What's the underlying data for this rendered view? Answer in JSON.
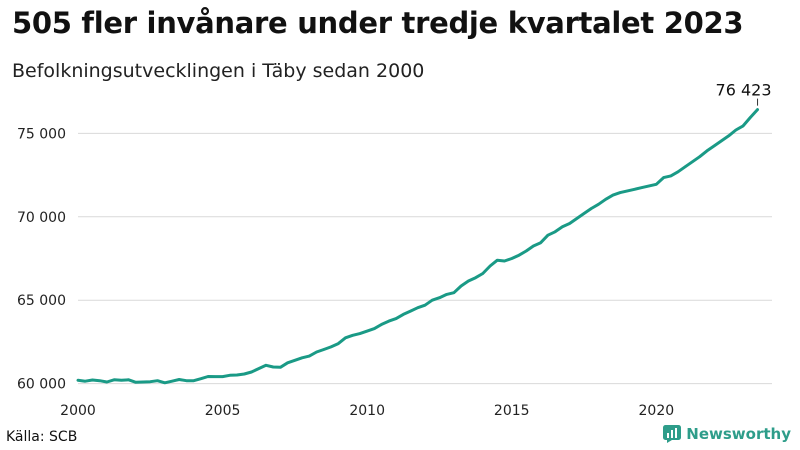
{
  "colors": {
    "line": "#1a9a86",
    "grid": "#d9d9d9",
    "brand": "#2e9d8a"
  },
  "source": "Källa: SCB",
  "brand": {
    "name": "Newsworthy",
    "icon": "newsworthy-logo-icon"
  },
  "chart_data": {
    "type": "line",
    "title": "505 fler invånare under tredje kvartalet 2023",
    "subtitle": "Befolkningsutvecklingen i Täby sedan 2000",
    "xlabel": "",
    "ylabel": "",
    "xlim": [
      2000,
      2024
    ],
    "ylim": [
      59500,
      77300
    ],
    "xticks": [
      2000,
      2005,
      2010,
      2015,
      2020
    ],
    "xtick_labels": [
      "2000",
      "2005",
      "2010",
      "2015",
      "2020"
    ],
    "yticks": [
      60000,
      65000,
      70000,
      75000
    ],
    "ytick_labels": [
      "60 000",
      "65 000",
      "70 000",
      "75 000"
    ],
    "grid": "horizontal",
    "last_value_label": "76 423",
    "series": [
      {
        "x": [
          2000.0,
          2000.25,
          2000.5,
          2000.75,
          2001.0,
          2001.25,
          2001.5,
          2001.75,
          2002.0,
          2002.25,
          2002.5,
          2002.75,
          2003.0,
          2003.25,
          2003.5,
          2003.75,
          2004.0,
          2004.25,
          2004.5,
          2004.75,
          2005.0,
          2005.25,
          2005.5,
          2005.75,
          2006.0,
          2006.25,
          2006.5,
          2006.75,
          2007.0,
          2007.25,
          2007.5,
          2007.75,
          2008.0,
          2008.25,
          2008.5,
          2008.75,
          2009.0,
          2009.25,
          2009.5,
          2009.75,
          2010.0,
          2010.25,
          2010.5,
          2010.75,
          2011.0,
          2011.25,
          2011.5,
          2011.75,
          2012.0,
          2012.25,
          2012.5,
          2012.75,
          2013.0,
          2013.25,
          2013.5,
          2013.75,
          2014.0,
          2014.25,
          2014.5,
          2014.75,
          2015.0,
          2015.25,
          2015.5,
          2015.75,
          2016.0,
          2016.25,
          2016.5,
          2016.75,
          2017.0,
          2017.25,
          2017.5,
          2017.75,
          2018.0,
          2018.25,
          2018.5,
          2018.75,
          2019.0,
          2019.25,
          2019.5,
          2019.75,
          2020.0,
          2020.25,
          2020.5,
          2020.75,
          2021.0,
          2021.25,
          2021.5,
          2021.75,
          2022.0,
          2022.25,
          2022.5,
          2022.75,
          2023.0,
          2023.25,
          2023.5
        ],
        "values": [
          60200,
          60150,
          60220,
          60180,
          60100,
          60230,
          60200,
          60230,
          60080,
          60100,
          60120,
          60180,
          60050,
          60150,
          60250,
          60180,
          60180,
          60300,
          60430,
          60420,
          60420,
          60500,
          60520,
          60580,
          60700,
          60900,
          61100,
          61000,
          60980,
          61250,
          61400,
          61550,
          61650,
          61900,
          62050,
          62200,
          62400,
          62750,
          62900,
          63000,
          63150,
          63300,
          63550,
          63750,
          63900,
          64150,
          64350,
          64550,
          64700,
          65000,
          65150,
          65350,
          65450,
          65850,
          66150,
          66350,
          66600,
          67050,
          67400,
          67350,
          67500,
          67700,
          67950,
          68250,
          68450,
          68900,
          69100,
          69400,
          69600,
          69900,
          70200,
          70500,
          70750,
          71050,
          71300,
          71450,
          71550,
          71650,
          71750,
          71850,
          71950,
          72350,
          72450,
          72700,
          73000,
          73300,
          73600,
          73950,
          74250,
          74550,
          74850,
          75200,
          75450,
          75950,
          76423
        ]
      }
    ]
  }
}
